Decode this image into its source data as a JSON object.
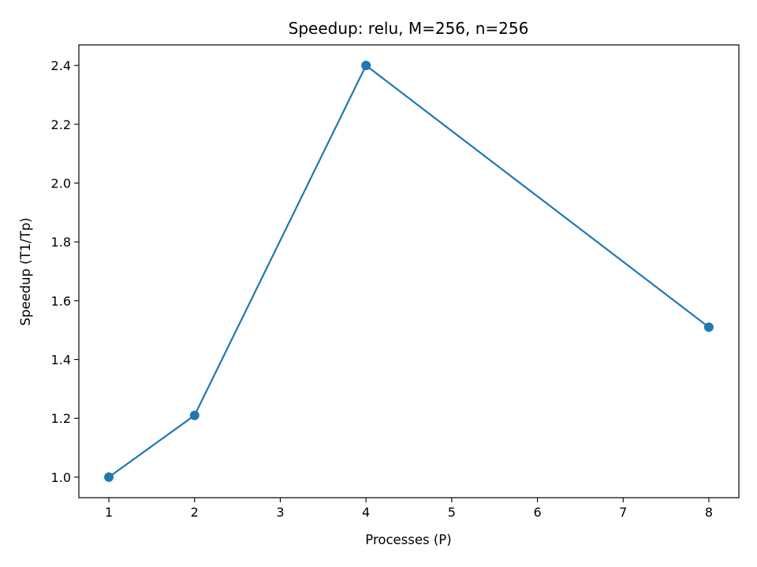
{
  "chart_data": {
    "type": "line",
    "title": "Speedup: relu, M=256, n=256",
    "xlabel": "Processes (P)",
    "ylabel": "Speedup (T1/Tp)",
    "xlim": [
      0.65,
      8.35
    ],
    "ylim": [
      0.93,
      2.47
    ],
    "xticks": [
      1,
      2,
      3,
      4,
      5,
      6,
      7,
      8
    ],
    "xtick_labels": [
      "1",
      "2",
      "3",
      "4",
      "5",
      "6",
      "7",
      "8"
    ],
    "yticks": [
      1.0,
      1.2,
      1.4,
      1.6,
      1.8,
      2.0,
      2.2,
      2.4
    ],
    "ytick_labels": [
      "1.0",
      "1.2",
      "1.4",
      "1.6",
      "1.8",
      "2.0",
      "2.2",
      "2.4"
    ],
    "grid": false,
    "series": [
      {
        "name": "speedup",
        "color": "#1f77b4",
        "marker": "circle",
        "x": [
          1,
          2,
          4,
          8
        ],
        "y": [
          1.0,
          1.21,
          2.4,
          1.51
        ]
      }
    ]
  }
}
